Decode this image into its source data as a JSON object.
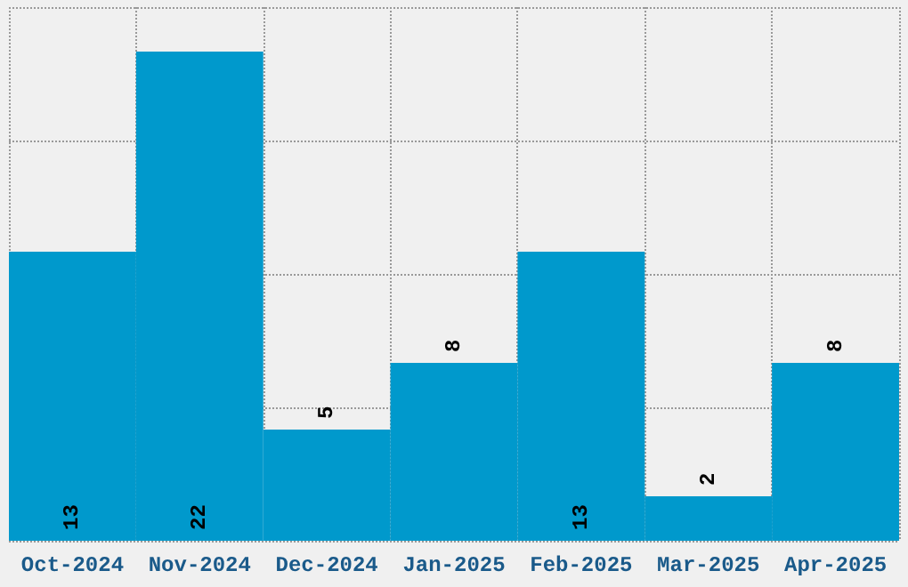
{
  "chart_data": {
    "type": "bar",
    "categories": [
      "Oct-2024",
      "Nov-2024",
      "Dec-2024",
      "Jan-2025",
      "Feb-2025",
      "Mar-2025",
      "Apr-2025"
    ],
    "values": [
      13,
      22,
      5,
      8,
      13,
      2,
      8
    ],
    "color": "#0099cc",
    "ylim": [
      0,
      24
    ],
    "yticks": [
      {
        "value": 0,
        "label": null
      },
      {
        "value": 6,
        "label": null
      },
      {
        "value": 12,
        "label": null
      },
      {
        "value": 18,
        "label": null
      },
      {
        "value": 24,
        "label": null
      }
    ],
    "tick_labels": "x",
    "grid": true,
    "data_labels": true
  }
}
